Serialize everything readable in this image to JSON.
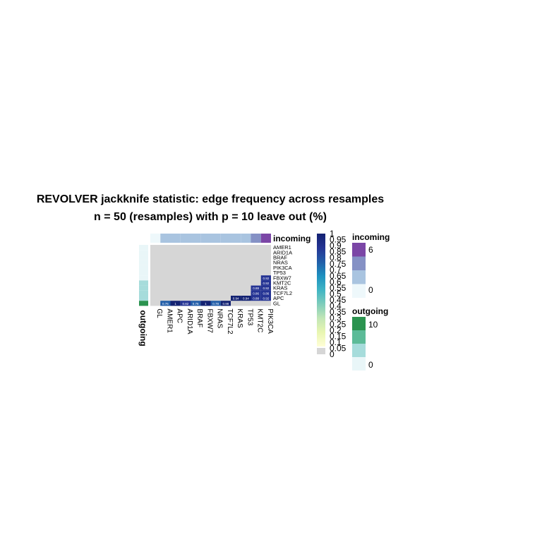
{
  "title_line1": "REVOLVER jackknife statistic: edge frequency across resamples",
  "title_line2": "n = 50 (resamples) with p = 10 leave out (%)",
  "colors": {
    "missing": "#d6d6d6",
    "incoming_scale": [
      "#eef8fb",
      "#a9c4e0",
      "#8591c5",
      "#7b46a6"
    ],
    "outgoing_scale": [
      "#e9f6f8",
      "#a6dcdb",
      "#5cbb98",
      "#2b934f"
    ],
    "heat_scale": [
      "#fffed7",
      "#e9f6b1",
      "#c2e6b6",
      "#80cdbb",
      "#40b5c4",
      "#1d91c0",
      "#225ea8",
      "#253494",
      "#132272"
    ]
  },
  "chart_data": {
    "type": "heatmap",
    "columns": [
      "GL",
      "AMER1",
      "APC",
      "ARID1A",
      "BRAF",
      "FBXW7",
      "NRAS",
      "TCF7L2",
      "KRAS",
      "TP53",
      "KMT2C",
      "PIK3CA"
    ],
    "rows": [
      "AMER1",
      "ARID1A",
      "BRAF",
      "NRAS",
      "PIK3CA",
      "TP53",
      "FBXW7",
      "KMT2C",
      "KRAS",
      "TCF7L2",
      "APC",
      "GL"
    ],
    "cells": [
      {
        "row": "GL",
        "col": "AMER1",
        "value": 0.76,
        "label": "0.76"
      },
      {
        "row": "GL",
        "col": "APC",
        "value": 1,
        "label": "1"
      },
      {
        "row": "GL",
        "col": "ARID1A",
        "value": 0.82,
        "label": "0.82"
      },
      {
        "row": "GL",
        "col": "BRAF",
        "value": 0.76,
        "label": "0.76"
      },
      {
        "row": "GL",
        "col": "FBXW7",
        "value": 1,
        "label": "1"
      },
      {
        "row": "GL",
        "col": "NRAS",
        "value": 0.78,
        "label": "0.78"
      },
      {
        "row": "GL",
        "col": "TCF7L2",
        "value": 0.98,
        "label": "0.98"
      },
      {
        "row": "APC",
        "col": "KRAS",
        "value": 0.94,
        "label": "0.94"
      },
      {
        "row": "APC",
        "col": "TP53",
        "value": 0.94,
        "label": "0.94"
      },
      {
        "row": "APC",
        "col": "KMT2C",
        "value": 0.88,
        "label": "0.88"
      },
      {
        "row": "APC",
        "col": "PIK3CA",
        "value": 0.92,
        "label": "0.92"
      },
      {
        "row": "TCF7L2",
        "col": "KMT2C",
        "value": 0.86,
        "label": "0.86"
      },
      {
        "row": "TCF7L2",
        "col": "PIK3CA",
        "value": 0.86,
        "label": "0.86"
      },
      {
        "row": "KRAS",
        "col": "KMT2C",
        "value": 0.88,
        "label": "0.88"
      },
      {
        "row": "KRAS",
        "col": "PIK3CA",
        "value": 0.92,
        "label": "0.92"
      },
      {
        "row": "KMT2C",
        "col": "PIK3CA",
        "value": 0.92,
        "label": "0.92"
      },
      {
        "row": "FBXW7",
        "col": "PIK3CA",
        "value": 0.92,
        "label": "0.92"
      }
    ],
    "incoming": [
      0,
      1,
      1,
      1,
      1,
      1,
      1,
      1,
      2,
      2,
      3,
      6
    ],
    "outgoing": [
      1,
      1,
      1,
      1,
      1,
      1,
      1,
      2,
      3,
      3,
      4,
      10
    ],
    "incoming_label": "incoming",
    "outgoing_label": "outgoing",
    "heat_legend_ticks": [
      "1",
      "0.95",
      "0.9",
      "0.85",
      "0.8",
      "0.75",
      "0.7",
      "0.65",
      "0.6",
      "0.55",
      "0.5",
      "0.45",
      "0.4",
      "0.35",
      "0.3",
      "0.25",
      "0.2",
      "0.15",
      "0.1",
      "0.05",
      "0"
    ],
    "incoming_legend": {
      "title": "incoming",
      "max_label": "6",
      "min_label": "0"
    },
    "outgoing_legend": {
      "title": "outgoing",
      "max_label": "10",
      "min_label": "0"
    }
  }
}
